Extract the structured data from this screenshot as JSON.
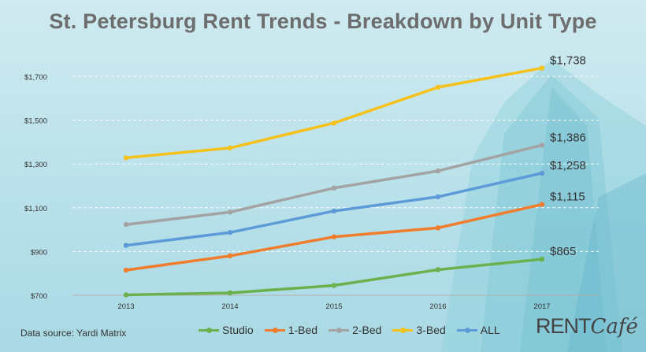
{
  "title": "St. Petersburg Rent Trends - Breakdown by Unit Type",
  "source": "Data source: Yardi Matrix",
  "brand": {
    "part1": "RENT",
    "part2": "Café"
  },
  "chart_data": {
    "type": "line",
    "title": "St. Petersburg Rent Trends - Breakdown by Unit Type",
    "xlabel": "",
    "ylabel": "",
    "x": [
      "2013",
      "2014",
      "2015",
      "2016",
      "2017"
    ],
    "ylim": [
      700,
      1700
    ],
    "yticks": [
      700,
      900,
      1100,
      1300,
      1500,
      1700
    ],
    "ytick_labels": [
      "$700",
      "$900",
      "$1,100",
      "$1,300",
      "$1,500",
      "$1,700"
    ],
    "grid": "horizontal dashed",
    "legend": "bottom",
    "series": [
      {
        "name": "Studio",
        "color": "#6ab04c",
        "values": [
          702,
          711,
          745,
          817,
          865
        ],
        "end_label": "$865"
      },
      {
        "name": "1-Bed",
        "color": "#f07c2e",
        "values": [
          815,
          880,
          967,
          1008,
          1115
        ],
        "end_label": "$1,115"
      },
      {
        "name": "2-Bed",
        "color": "#a3a3a3",
        "values": [
          1023,
          1080,
          1190,
          1268,
          1386
        ],
        "end_label": "$1,386"
      },
      {
        "name": "3-Bed",
        "color": "#f5c11a",
        "values": [
          1328,
          1373,
          1487,
          1650,
          1738
        ],
        "end_label": "$1,738"
      },
      {
        "name": "ALL",
        "color": "#5c9bd8",
        "values": [
          928,
          987,
          1085,
          1150,
          1258
        ],
        "end_label": "$1,258"
      }
    ]
  }
}
